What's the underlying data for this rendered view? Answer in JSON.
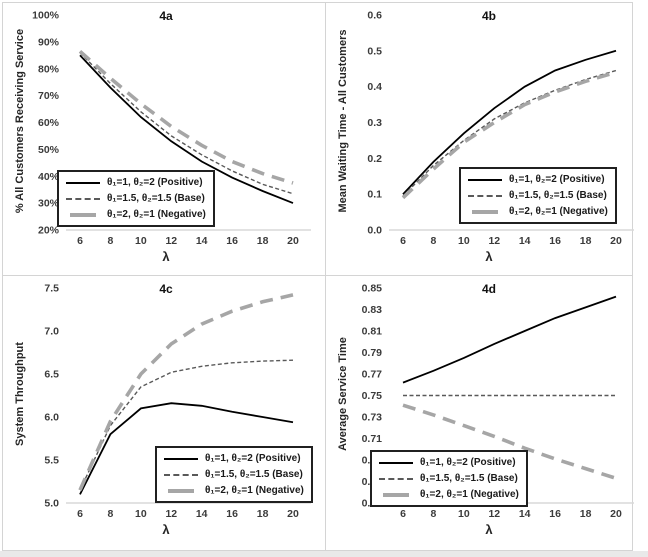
{
  "page": {
    "background": "#ffffff",
    "border_color": "#d4d4d4",
    "bottom_strip_color": "#e9e9e9"
  },
  "colors": {
    "positive_line": "#000000",
    "base_line": "#595959",
    "negative_line": "#a6a6a6",
    "axis_line": "#d9d9d9",
    "tick_text": "#3b3b3b"
  },
  "chart_data": [
    {
      "type": "line",
      "title": "4a",
      "ylabel": "% All Customers Receiving Service",
      "xlabel": "λ",
      "x": [
        6,
        8,
        10,
        12,
        14,
        16,
        18,
        20
      ],
      "xtick_labels": [
        "6",
        "8",
        "10",
        "12",
        "14",
        "16",
        "18",
        "20"
      ],
      "ylim": [
        20,
        100
      ],
      "ytick_values": [
        100,
        90,
        80,
        70,
        60,
        50,
        40,
        30,
        20
      ],
      "ytick_labels": [
        "100%",
        "90%",
        "80%",
        "70%",
        "60%",
        "50%",
        "40%",
        "30%",
        "20%"
      ],
      "grid": false,
      "legend_position": "bottom-left",
      "series": [
        {
          "name": "θ₁=1, θ₂=2 (Positive)",
          "style": "positive",
          "values": [
            85,
            73,
            62,
            53,
            45.5,
            39.5,
            34.5,
            30
          ]
        },
        {
          "name": "θ₁=1.5, θ₂=1.5 (Base)",
          "style": "base",
          "values": [
            86,
            74.5,
            64,
            55,
            48,
            42,
            37,
            33.5
          ]
        },
        {
          "name": "θ₁=2, θ₂=1 (Negative)",
          "style": "negative",
          "values": [
            86.5,
            76.5,
            67,
            58.5,
            51.5,
            45.5,
            41,
            37.5
          ]
        }
      ]
    },
    {
      "type": "line",
      "title": "4b",
      "ylabel": "Mean Waiting Time - All Customers",
      "xlabel": "λ",
      "x": [
        6,
        8,
        10,
        12,
        14,
        16,
        18,
        20
      ],
      "xtick_labels": [
        "6",
        "8",
        "10",
        "12",
        "14",
        "16",
        "18",
        "20"
      ],
      "ylim": [
        0,
        0.6
      ],
      "ytick_values": [
        0.6,
        0.5,
        0.4,
        0.3,
        0.2,
        0.1,
        0.0
      ],
      "ytick_labels": [
        "0.6",
        "0.5",
        "0.4",
        "0.3",
        "0.2",
        "0.1",
        "0.0"
      ],
      "grid": false,
      "legend_position": "bottom-right",
      "series": [
        {
          "name": "θ₁=1, θ₂=2 (Positive)",
          "style": "positive",
          "values": [
            0.1,
            0.19,
            0.27,
            0.34,
            0.4,
            0.445,
            0.475,
            0.5
          ]
        },
        {
          "name": "θ₁=1.5, θ₂=1.5 (Base)",
          "style": "base",
          "values": [
            0.095,
            0.18,
            0.25,
            0.31,
            0.355,
            0.39,
            0.42,
            0.445
          ]
        },
        {
          "name": "θ₁=2, θ₂=1 (Negative)",
          "style": "negative",
          "values": [
            0.09,
            0.17,
            0.245,
            0.3,
            0.35,
            0.385,
            0.415,
            0.44
          ]
        }
      ]
    },
    {
      "type": "line",
      "title": "4c",
      "ylabel": "System Throughput",
      "xlabel": "λ",
      "x": [
        6,
        8,
        10,
        12,
        14,
        16,
        18,
        20
      ],
      "xtick_labels": [
        "6",
        "8",
        "10",
        "12",
        "14",
        "16",
        "18",
        "20"
      ],
      "ylim": [
        5.0,
        7.5
      ],
      "ytick_values": [
        7.5,
        7.0,
        6.5,
        6.0,
        5.5,
        5.0
      ],
      "ytick_labels": [
        "7.5",
        "7.0",
        "6.5",
        "6.0",
        "5.5",
        "5.0"
      ],
      "grid": false,
      "legend_position": "bottom-right",
      "series": [
        {
          "name": "θ₁=1, θ₂=2 (Positive)",
          "style": "positive",
          "values": [
            5.1,
            5.8,
            6.1,
            6.16,
            6.13,
            6.06,
            6.0,
            5.94
          ]
        },
        {
          "name": "θ₁=1.5, θ₂=1.5 (Base)",
          "style": "base",
          "values": [
            5.15,
            5.9,
            6.35,
            6.52,
            6.59,
            6.63,
            6.65,
            6.66
          ]
        },
        {
          "name": "θ₁=2, θ₂=1 (Negative)",
          "style": "negative",
          "values": [
            5.15,
            5.95,
            6.5,
            6.85,
            7.08,
            7.23,
            7.34,
            7.42
          ]
        }
      ]
    },
    {
      "type": "line",
      "title": "4d",
      "ylabel": "Average Service Time",
      "xlabel": "λ",
      "x": [
        6,
        8,
        10,
        12,
        14,
        16,
        18,
        20
      ],
      "xtick_labels": [
        "6",
        "8",
        "10",
        "12",
        "14",
        "16",
        "18",
        "20"
      ],
      "ylim": [
        0.65,
        0.85
      ],
      "ytick_values": [
        0.85,
        0.83,
        0.81,
        0.79,
        0.77,
        0.75,
        0.73,
        0.71,
        0.69,
        0.67,
        0.65
      ],
      "ytick_labels": [
        "0.85",
        "0.83",
        "0.81",
        "0.79",
        "0.77",
        "0.75",
        "0.73",
        "0.71",
        "0.69",
        "0.67",
        "0.65"
      ],
      "grid": false,
      "legend_position": "bottom-left",
      "series": [
        {
          "name": "θ₁=1, θ₂=2 (Positive)",
          "style": "positive",
          "values": [
            0.762,
            0.773,
            0.785,
            0.798,
            0.81,
            0.822,
            0.832,
            0.842
          ]
        },
        {
          "name": "θ₁=1.5, θ₂=1.5 (Base)",
          "style": "base",
          "values": [
            0.75,
            0.75,
            0.75,
            0.75,
            0.75,
            0.75,
            0.75,
            0.75
          ]
        },
        {
          "name": "θ₁=2, θ₂=1 (Negative)",
          "style": "negative",
          "values": [
            0.741,
            0.732,
            0.722,
            0.712,
            0.701,
            0.691,
            0.682,
            0.673
          ]
        }
      ]
    }
  ]
}
